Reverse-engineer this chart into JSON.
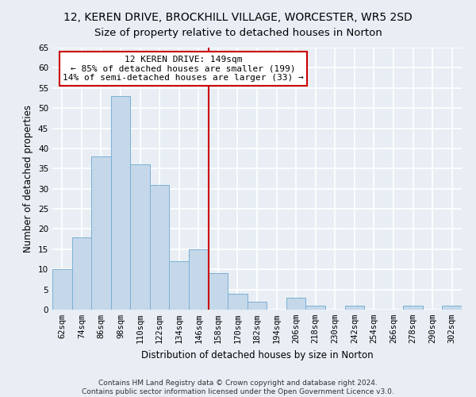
{
  "title": "12, KEREN DRIVE, BROCKHILL VILLAGE, WORCESTER, WR5 2SD",
  "subtitle": "Size of property relative to detached houses in Norton",
  "xlabel": "Distribution of detached houses by size in Norton",
  "ylabel": "Number of detached properties",
  "categories": [
    "62sqm",
    "74sqm",
    "86sqm",
    "98sqm",
    "110sqm",
    "122sqm",
    "134sqm",
    "146sqm",
    "158sqm",
    "170sqm",
    "182sqm",
    "194sqm",
    "206sqm",
    "218sqm",
    "230sqm",
    "242sqm",
    "254sqm",
    "266sqm",
    "278sqm",
    "290sqm",
    "302sqm"
  ],
  "values": [
    10,
    18,
    38,
    53,
    36,
    31,
    12,
    15,
    9,
    4,
    2,
    0,
    3,
    1,
    0,
    1,
    0,
    0,
    1,
    0,
    1
  ],
  "bar_color": "#c5d8ea",
  "bar_edge_color": "#7aafd4",
  "vline_x": 7.5,
  "annotation_line1": "12 KEREN DRIVE: 149sqm",
  "annotation_line2": "← 85% of detached houses are smaller (199)",
  "annotation_line3": "14% of semi-detached houses are larger (33) →",
  "annotation_box_color": "white",
  "annotation_box_edge_color": "#cc0000",
  "vline_color": "#cc0000",
  "ylim": [
    0,
    65
  ],
  "yticks": [
    0,
    5,
    10,
    15,
    20,
    25,
    30,
    35,
    40,
    45,
    50,
    55,
    60,
    65
  ],
  "footnote1": "Contains HM Land Registry data © Crown copyright and database right 2024.",
  "footnote2": "Contains public sector information licensed under the Open Government Licence v3.0.",
  "bg_color": "#e8eef4",
  "grid_color": "#ffffff",
  "title_fontsize": 10,
  "subtitle_fontsize": 9.5,
  "axis_label_fontsize": 8.5,
  "tick_fontsize": 7.5,
  "annotation_fontsize": 8,
  "footnote_fontsize": 6.5
}
